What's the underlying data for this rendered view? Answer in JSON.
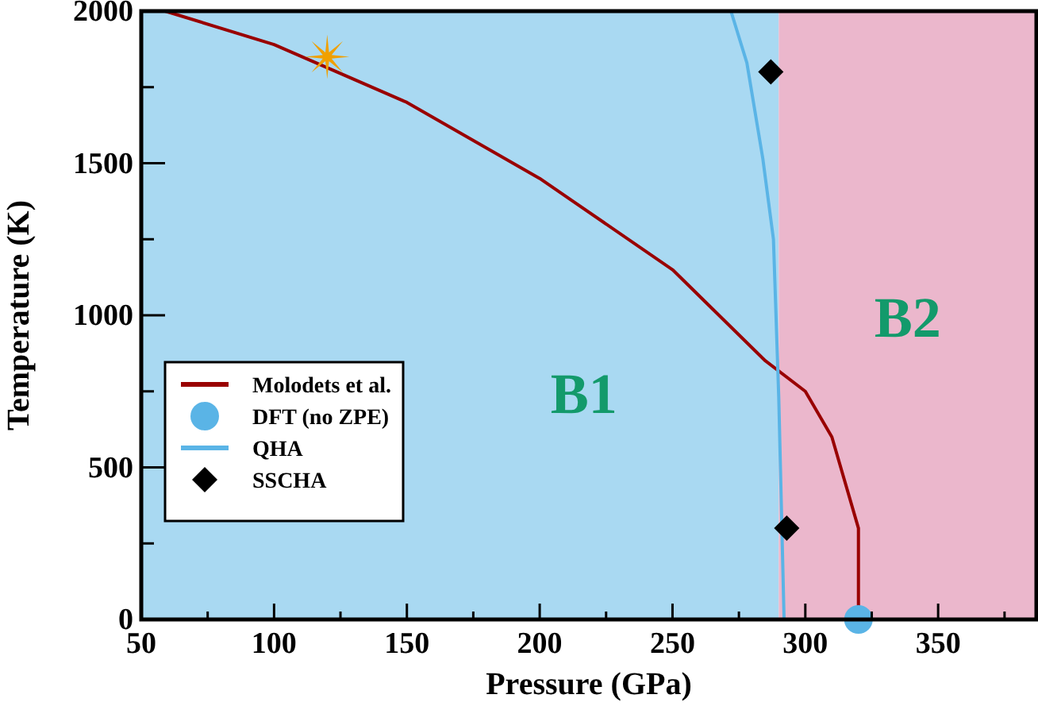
{
  "chart_data": {
    "type": "line",
    "xlabel": "Pressure (GPa)",
    "ylabel": "Temperature (K)",
    "xlim": [
      50,
      387
    ],
    "ylim": [
      0,
      2000
    ],
    "xticks": [
      50,
      {
        "value": 75,
        "label": null
      },
      100,
      {
        "value": 125,
        "label": null
      },
      150,
      {
        "value": 175,
        "label": null
      },
      200,
      {
        "value": 225,
        "label": null
      },
      250,
      {
        "value": 275,
        "label": null
      },
      300,
      {
        "value": 325,
        "label": null
      },
      350,
      {
        "value": 375,
        "label": null
      }
    ],
    "yticks": [
      0,
      {
        "value": 250,
        "label": null
      },
      500,
      {
        "value": 750,
        "label": null
      },
      1000,
      {
        "value": 1250,
        "label": null
      },
      1500,
      {
        "value": 1750,
        "label": null
      },
      2000
    ],
    "bands": [
      {
        "axis": "x",
        "from": 50,
        "to": 290,
        "label": "B1",
        "color": "#a9d9f2"
      },
      {
        "axis": "x",
        "from": 290,
        "to": 387,
        "label": "B2",
        "color": "#ebb7cc"
      }
    ],
    "series": [
      {
        "name": "Molodets et al.",
        "color": "#990000",
        "marker": "none",
        "x": [
          59,
          100,
          150,
          200,
          250,
          285,
          300,
          310,
          320,
          320
        ],
        "values": [
          2000,
          1890,
          1700,
          1450,
          1150,
          850,
          750,
          600,
          300,
          0
        ]
      },
      {
        "name": "DFT (no ZPE)",
        "type": "scatter",
        "color": "#5ab4e6",
        "marker": "circle",
        "x": [
          320
        ],
        "values": [
          0
        ]
      },
      {
        "name": "QHA",
        "color": "#5ab4e6",
        "marker": "none",
        "x": [
          272,
          278,
          284,
          288,
          290,
          292
        ],
        "values": [
          2000,
          1830,
          1515,
          1250,
          730,
          0
        ]
      },
      {
        "name": "SSCHA",
        "type": "scatter",
        "color": "#000000",
        "marker": "diamond",
        "x": [
          287,
          293
        ],
        "values": [
          1800,
          300
        ]
      },
      {
        "type": "scatter",
        "color": "#f0a000",
        "marker": "star",
        "x": [
          120
        ],
        "values": [
          1850
        ]
      }
    ],
    "legend": "left",
    "grid": false
  }
}
